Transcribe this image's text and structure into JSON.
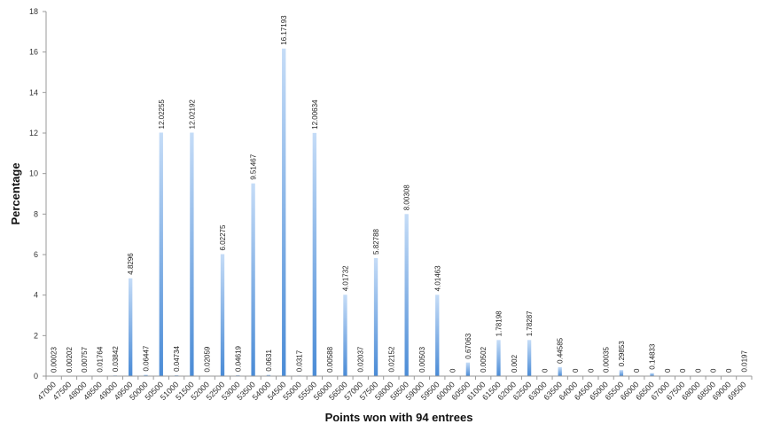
{
  "chart_data": {
    "type": "bar",
    "title": "",
    "xlabel": "Points won with 94 entrees",
    "ylabel": "Percentage",
    "ylim": [
      0,
      18
    ],
    "yticks": [
      0,
      2,
      4,
      6,
      8,
      10,
      12,
      14,
      16,
      18
    ],
    "grid": false,
    "legend": "none",
    "bar_color_top": "#c5dcf7",
    "bar_color_bottom": "#4a8bd6",
    "axis_color": "#999999",
    "categories": [
      "47000",
      "47500",
      "48000",
      "48500",
      "49000",
      "49500",
      "50000",
      "50500",
      "51000",
      "51500",
      "52000",
      "52500",
      "53000",
      "53500",
      "54000",
      "54500",
      "55000",
      "55500",
      "56000",
      "56500",
      "57000",
      "57500",
      "58000",
      "58500",
      "59000",
      "59500",
      "60000",
      "60500",
      "61000",
      "61500",
      "62000",
      "62500",
      "63000",
      "63500",
      "64000",
      "64500",
      "65000",
      "65500",
      "66000",
      "66500",
      "67000",
      "67500",
      "68000",
      "68500",
      "69000",
      "69500"
    ],
    "values": [
      0.00023,
      0.00202,
      0.00757,
      0.01764,
      0.03842,
      4.8296,
      0.06447,
      12.02255,
      0.04734,
      12.02192,
      0.02059,
      6.02275,
      0.04619,
      9.51467,
      0.0631,
      16.17193,
      0.0317,
      12.00634,
      0.00588,
      4.01732,
      0.02037,
      5.82788,
      0.02152,
      8.00308,
      0.00503,
      4.01463,
      0,
      0.67063,
      0.00502,
      1.78198,
      0.002,
      1.78287,
      0,
      0.44585,
      0,
      0,
      0.00035,
      0.29853,
      0,
      0.14833,
      0,
      0,
      0,
      0,
      0,
      0.0197
    ],
    "data_labels": [
      "0.00023",
      "0.00202",
      "0.00757",
      "0.01764",
      "0.03842",
      "4.8296",
      "0.06447",
      "12.02255",
      "0.04734",
      "12.02192",
      "0.02059",
      "6.02275",
      "0.04619",
      "9.51467",
      "0.0631",
      "16.17193",
      "0.0317",
      "12.00634",
      "0.00588",
      "4.01732",
      "0.02037",
      "5.82788",
      "0.02152",
      "8.00308",
      "0.00503",
      "4.01463",
      "0",
      "0.67063",
      "0.00502",
      "1.78198",
      "0.002",
      "1.78287",
      "0",
      "0.44585",
      "0",
      "0",
      "0.00035",
      "0.29853",
      "0",
      "0.14833",
      "0",
      "0",
      "0",
      "0",
      "0",
      "0.0197"
    ]
  }
}
